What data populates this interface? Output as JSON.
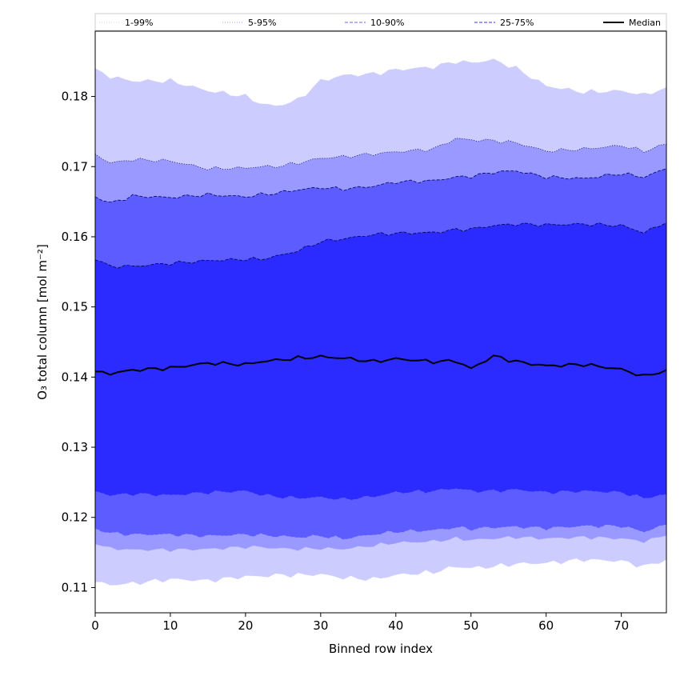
{
  "chart_data": {
    "type": "area",
    "title": "",
    "xlabel": "Binned row index",
    "ylabel": "O₃ total column [mol m⁻²]",
    "xlim": [
      0,
      76
    ],
    "ylim": [
      0.1064,
      0.1893
    ],
    "xticks": [
      0,
      10,
      20,
      30,
      40,
      50,
      60,
      70
    ],
    "yticks": [
      0.11,
      0.12,
      0.13,
      0.14,
      0.15,
      0.16,
      0.17,
      0.18
    ],
    "ytick_labels": [
      "0.11",
      "0.12",
      "0.13",
      "0.14",
      "0.15",
      "0.16",
      "0.17",
      "0.18"
    ],
    "grid": false,
    "legend_position": "top",
    "legend": [
      {
        "label": "1-99%",
        "color": "#ccccff",
        "style": "dotted"
      },
      {
        "label": "5-95%",
        "color": "#9999ff",
        "style": "dotted"
      },
      {
        "label": "10-90%",
        "color": "#6666ff",
        "style": "dashed"
      },
      {
        "label": "25-75%",
        "color": "#3333ff",
        "style": "dashed"
      },
      {
        "label": "Median",
        "color": "#000000",
        "style": "solid"
      }
    ],
    "band_colors": {
      "p1_99": "#ccccff",
      "p5_95": "#9999ff",
      "p10_90": "#5c5cff",
      "p25_75": "#2b2bff",
      "median": "#000000"
    },
    "x_knots": [
      0,
      2,
      5,
      10,
      15,
      20,
      22,
      24,
      27,
      30,
      33,
      37,
      40,
      45,
      48,
      50,
      53,
      56,
      60,
      65,
      70,
      73,
      76
    ],
    "bands": {
      "p1_upper": [
        0.184,
        0.1828,
        0.1822,
        0.1822,
        0.1808,
        0.18,
        0.179,
        0.1786,
        0.1795,
        0.1822,
        0.183,
        0.1832,
        0.1838,
        0.1842,
        0.185,
        0.1848,
        0.1852,
        0.184,
        0.1815,
        0.1806,
        0.1808,
        0.1802,
        0.1813
      ],
      "p5_upper": [
        0.1718,
        0.1705,
        0.171,
        0.1708,
        0.1697,
        0.1698,
        0.17,
        0.17,
        0.1705,
        0.1712,
        0.1714,
        0.1718,
        0.1721,
        0.1725,
        0.174,
        0.1738,
        0.1737,
        0.1734,
        0.1722,
        0.1725,
        0.173,
        0.1722,
        0.1732
      ],
      "p10_upper": [
        0.1657,
        0.1648,
        0.1658,
        0.1656,
        0.166,
        0.1657,
        0.166,
        0.1662,
        0.1667,
        0.167,
        0.1668,
        0.1672,
        0.1678,
        0.168,
        0.1685,
        0.1686,
        0.1692,
        0.1694,
        0.1685,
        0.1683,
        0.169,
        0.1685,
        0.1697
      ],
      "p25_upper": [
        0.1567,
        0.1558,
        0.1558,
        0.1562,
        0.1566,
        0.1568,
        0.1568,
        0.1572,
        0.158,
        0.1593,
        0.1597,
        0.1603,
        0.1605,
        0.1606,
        0.161,
        0.1611,
        0.1616,
        0.1618,
        0.1617,
        0.1618,
        0.1616,
        0.1606,
        0.162
      ],
      "median": [
        0.1408,
        0.1405,
        0.141,
        0.1413,
        0.142,
        0.1418,
        0.1422,
        0.1424,
        0.1427,
        0.1429,
        0.1427,
        0.1422,
        0.1426,
        0.1422,
        0.1423,
        0.1412,
        0.143,
        0.1422,
        0.1416,
        0.1418,
        0.1411,
        0.1401,
        0.141
      ],
      "p25_lower": [
        0.1238,
        0.1232,
        0.1234,
        0.1232,
        0.1236,
        0.1238,
        0.1233,
        0.123,
        0.1228,
        0.1229,
        0.1226,
        0.123,
        0.1236,
        0.1238,
        0.1242,
        0.1238,
        0.1238,
        0.124,
        0.1236,
        0.1238,
        0.1236,
        0.1228,
        0.1233
      ],
      "p10_lower": [
        0.1185,
        0.1178,
        0.1176,
        0.1176,
        0.1174,
        0.1176,
        0.1175,
        0.1174,
        0.1172,
        0.1174,
        0.117,
        0.1176,
        0.118,
        0.1182,
        0.1186,
        0.1184,
        0.1186,
        0.1187,
        0.1185,
        0.1188,
        0.1188,
        0.118,
        0.119
      ],
      "p5_lower": [
        0.1162,
        0.1156,
        0.1154,
        0.1154,
        0.1155,
        0.1158,
        0.1158,
        0.1156,
        0.1155,
        0.1156,
        0.1155,
        0.116,
        0.1164,
        0.1166,
        0.117,
        0.1168,
        0.117,
        0.1172,
        0.117,
        0.1172,
        0.117,
        0.1166,
        0.1174
      ],
      "p1_lower": [
        0.1108,
        0.1104,
        0.1106,
        0.1112,
        0.111,
        0.1116,
        0.1116,
        0.1118,
        0.1118,
        0.1119,
        0.1114,
        0.1112,
        0.1118,
        0.1122,
        0.113,
        0.1128,
        0.113,
        0.1134,
        0.1135,
        0.114,
        0.1138,
        0.113,
        0.114
      ]
    }
  }
}
